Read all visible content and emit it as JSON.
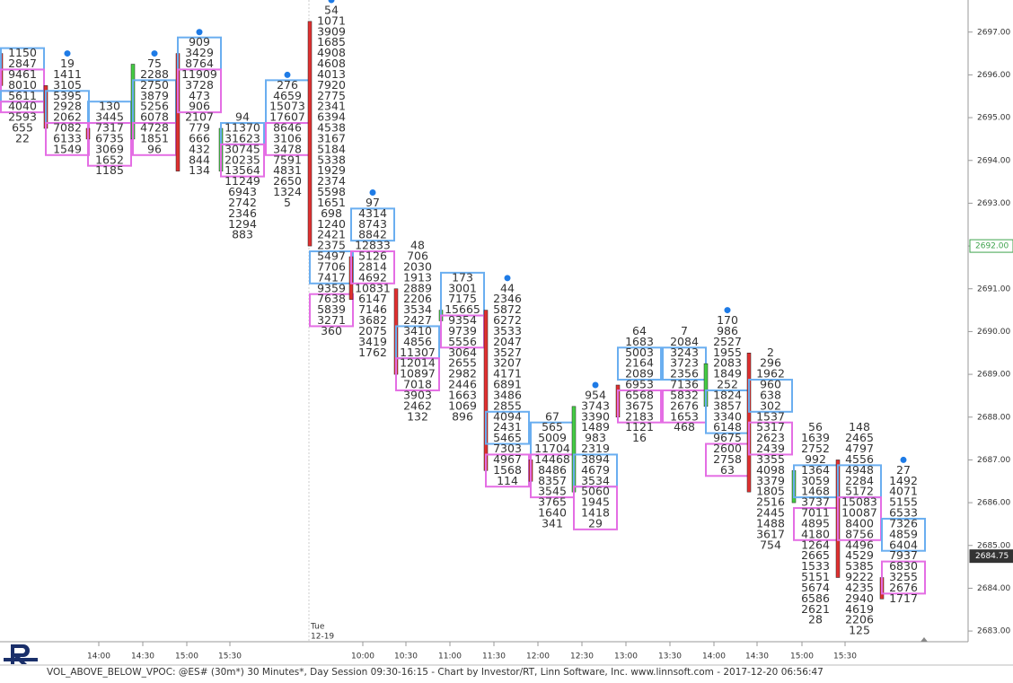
{
  "chart_data": {
    "type": "footprint",
    "ylim": [
      2682.75,
      2697.75
    ],
    "yticks": [
      {
        "value": 2683,
        "label": "2683.00"
      },
      {
        "value": 2684,
        "label": "2684.00"
      },
      {
        "value": 2685,
        "label": "2685.00"
      },
      {
        "value": 2686,
        "label": "2686.00"
      },
      {
        "value": 2687,
        "label": "2687.00"
      },
      {
        "value": 2688,
        "label": "2688.00"
      },
      {
        "value": 2689,
        "label": "2689.00"
      },
      {
        "value": 2690,
        "label": "2690.00"
      },
      {
        "value": 2691,
        "label": "2691.00"
      },
      {
        "value": 2692,
        "label": "2692.00"
      },
      {
        "value": 2693,
        "label": "2693.00"
      },
      {
        "value": 2694,
        "label": "2694.00"
      },
      {
        "value": 2695,
        "label": "2695.00"
      },
      {
        "value": 2696,
        "label": "2696.00"
      },
      {
        "value": 2697,
        "label": "2697.00"
      }
    ],
    "price_markers": [
      {
        "value": 2692,
        "label": "2692.00",
        "color": "#3fa34d"
      },
      {
        "value": 2684.75,
        "label": "2684.75",
        "color": "#333333"
      }
    ],
    "time_labels": [
      "14:00",
      "14:30",
      "15:00",
      "15:30",
      "10:00",
      "10:30",
      "11:00",
      "11:30",
      "12:00",
      "12:30",
      "13:00",
      "13:30",
      "14:00",
      "14:30",
      "15:00",
      "15:30"
    ],
    "session_label": [
      "Tue",
      "12-19"
    ],
    "footer": "VOL_ABOVE_BELOW_VPOC: @ES# (30m*) 30 Minutes*, Day Session 09:30-16:15 - Chart by Investor/RT, Linn Software, Inc. www.linnsoft.com - 2017-12-20 06:56:47",
    "above_color": "#6aaef0",
    "below_color": "#e46ee4",
    "columns": [
      {
        "top": 2696.5,
        "values": [
          1150,
          2847,
          9461,
          8010,
          5611,
          4040,
          2593,
          655,
          22
        ],
        "boxes": [
          {
            "from": 2696.5,
            "to": 2696.25,
            "side": "above"
          },
          {
            "from": 2696,
            "to": 2695.75,
            "side": "below"
          },
          {
            "from": 2695.5,
            "to": 2695.5,
            "side": "above"
          },
          {
            "from": 2695.25,
            "to": 2695.25,
            "side": "below"
          }
        ],
        "body": {
          "high": 2696.5,
          "low": 2695.75,
          "color": "#e03030"
        }
      },
      {
        "top": 2696.25,
        "values": [
          19,
          1411,
          3105,
          5395,
          2928,
          2062,
          7082,
          6133,
          1549
        ],
        "boxes": [
          {
            "from": 2695.5,
            "to": 2695,
            "side": "above"
          },
          {
            "from": 2694.75,
            "to": 2694.25,
            "side": "below"
          }
        ],
        "body": {
          "high": 2695.75,
          "low": 2694.75,
          "color": "#e03030"
        },
        "dot": 2696.5
      },
      {
        "top": 2695.25,
        "values": [
          130,
          3445,
          7317,
          6735,
          3069,
          1652,
          1185
        ],
        "boxes": [
          {
            "from": 2695.25,
            "to": 2695,
            "side": "above"
          },
          {
            "from": 2694.75,
            "to": 2694,
            "side": "below"
          }
        ],
        "body": {
          "high": 2694.75,
          "low": 2694.5,
          "color": "#e03030"
        }
      },
      {
        "top": 2696.25,
        "values": [
          75,
          2288,
          2750,
          3879,
          5256,
          6078,
          4728,
          1851,
          96
        ],
        "boxes": [
          {
            "from": 2695.75,
            "to": 2695,
            "side": "above"
          },
          {
            "from": 2694.75,
            "to": 2694.25,
            "side": "below"
          }
        ],
        "body": {
          "high": 2696.25,
          "low": 2694.5,
          "color": "#44cc44"
        },
        "dot": 2696.5
      },
      {
        "top": 2696.75,
        "values": [
          909,
          3429,
          8764,
          11909,
          3728,
          473,
          906,
          2107,
          779,
          666,
          432,
          844,
          134
        ],
        "boxes": [
          {
            "from": 2696.75,
            "to": 2696.25,
            "side": "above"
          },
          {
            "from": 2696,
            "to": 2695.25,
            "side": "below"
          }
        ],
        "body": {
          "high": 2696.5,
          "low": 2693.75,
          "color": "#e03030"
        },
        "dot": 2697
      },
      {
        "top": 2695,
        "values": [
          94,
          11370,
          31623,
          30745,
          20235,
          13564,
          11249,
          6943,
          2742,
          2346,
          1294,
          883
        ],
        "boxes": [
          {
            "from": 2694.75,
            "to": 2694.5,
            "side": "above"
          },
          {
            "from": 2694.25,
            "to": 2693.75,
            "side": "below"
          }
        ],
        "body": {
          "high": 2694.75,
          "low": 2693.75,
          "color": "#44cc44"
        }
      },
      {
        "top": 2695.75,
        "values": [
          276,
          4659,
          15073,
          17607,
          8646,
          3106,
          3478,
          7591,
          4831,
          2650,
          1324,
          5
        ],
        "boxes": [
          {
            "from": 2695.75,
            "to": 2695,
            "side": "above"
          },
          {
            "from": 2694.75,
            "to": 2694.25,
            "side": "below"
          }
        ],
        "dot": 2696
      },
      {
        "top": 2697.5,
        "values": [
          54,
          1071,
          3909,
          1685,
          4908,
          4608,
          4013,
          7920,
          2775,
          2341,
          6394,
          4538,
          3167,
          5184,
          5338,
          1929,
          2374,
          5598,
          1651,
          698,
          1240,
          2421,
          2375,
          5497,
          7706,
          7417,
          9359,
          7638,
          5839,
          3271,
          360
        ],
        "boxes": [
          {
            "from": 2691.75,
            "to": 2691.25,
            "side": "above"
          },
          {
            "from": 2690.75,
            "to": 2690.25,
            "side": "below"
          }
        ],
        "body": {
          "high": 2697.25,
          "low": 2692,
          "color": "#e03030"
        },
        "dot": 2697.75
      },
      {
        "top": 2693,
        "values": [
          97,
          4314,
          8743,
          8842,
          12833,
          5126,
          2814,
          4692,
          10831,
          6147,
          7146,
          3682,
          2075,
          3419,
          1762
        ],
        "boxes": [
          {
            "from": 2692.75,
            "to": 2692.25,
            "side": "above"
          },
          {
            "from": 2691.75,
            "to": 2691.25,
            "side": "below"
          }
        ],
        "body": {
          "high": 2691.75,
          "low": 2690.75,
          "color": "#e03030"
        },
        "dot": 2693.25
      },
      {
        "top": 2692,
        "values": [
          48,
          706,
          2030,
          1913,
          2889,
          2206,
          3534,
          2427,
          3410,
          4856,
          11307,
          12014,
          10897,
          7018,
          3903,
          2462,
          132
        ],
        "boxes": [
          {
            "from": 2690,
            "to": 2689.5,
            "side": "above"
          },
          {
            "from": 2689.25,
            "to": 2688.75,
            "side": "below"
          }
        ],
        "body": {
          "high": 2691,
          "low": 2689,
          "color": "#e03030"
        }
      },
      {
        "top": 2691.25,
        "values": [
          173,
          3001,
          7175,
          15665,
          9354,
          9739,
          5556,
          3064,
          2655,
          2982,
          2446,
          1663,
          1069,
          896
        ],
        "boxes": [
          {
            "from": 2691.25,
            "to": 2690.5,
            "side": "above"
          },
          {
            "from": 2690.25,
            "to": 2689.75,
            "side": "below"
          }
        ],
        "body": {
          "high": 2690.5,
          "low": 2690.25,
          "color": "#44cc44"
        }
      },
      {
        "top": 2691,
        "values": [
          44,
          2346,
          5872,
          6272,
          3533,
          2047,
          3527,
          3207,
          4171,
          6891,
          3486,
          2855,
          4094,
          2431,
          5465,
          7303,
          4967,
          1568,
          114
        ],
        "boxes": [
          {
            "from": 2688,
            "to": 2687.5,
            "side": "above"
          },
          {
            "from": 2687,
            "to": 2686.5,
            "side": "below"
          }
        ],
        "body": {
          "high": 2690.5,
          "low": 2686.75,
          "color": "#e03030"
        },
        "dot": 2691.25
      },
      {
        "top": 2688,
        "values": [
          67,
          565,
          5009,
          11704,
          14468,
          8486,
          8357,
          3545,
          3765,
          1640,
          341
        ],
        "boxes": [
          {
            "from": 2687.75,
            "to": 2687.25,
            "side": "above"
          },
          {
            "from": 2687,
            "to": 2686.25,
            "side": "below"
          }
        ],
        "body": {
          "high": 2687,
          "low": 2686.5,
          "color": "#e03030"
        }
      },
      {
        "top": 2688.5,
        "values": [
          954,
          3743,
          3390,
          1489,
          983,
          2319,
          3894,
          4679,
          3534,
          5060,
          1945,
          1418,
          29
        ],
        "boxes": [
          {
            "from": 2687,
            "to": 2686.5,
            "side": "above"
          },
          {
            "from": 2686.25,
            "to": 2685.5,
            "side": "below"
          }
        ],
        "body": {
          "high": 2688.25,
          "low": 2686.25,
          "color": "#44cc44"
        },
        "dot": 2688.75
      },
      {
        "top": 2690,
        "values": [
          64,
          1683,
          5003,
          2164,
          2089,
          6953,
          6568,
          3675,
          2183,
          1121,
          16
        ],
        "boxes": [
          {
            "from": 2689.5,
            "to": 2689,
            "side": "above"
          },
          {
            "from": 2688.5,
            "to": 2688,
            "side": "below"
          }
        ],
        "body": {
          "high": 2688.75,
          "low": 2688,
          "color": "#e03030"
        }
      },
      {
        "top": 2690,
        "values": [
          7,
          2084,
          3243,
          3723,
          2356,
          7136,
          5832,
          2676,
          1653,
          468
        ],
        "boxes": [
          {
            "from": 2689.5,
            "to": 2689,
            "side": "above"
          },
          {
            "from": 2688.5,
            "to": 2688,
            "side": "below"
          }
        ]
      },
      {
        "top": 2690.25,
        "values": [
          170,
          986,
          2527,
          1955,
          2083,
          1849,
          252,
          1824,
          3857,
          3340,
          6148,
          9675,
          2600,
          2758,
          63
        ],
        "boxes": [
          {
            "from": 2688.5,
            "to": 2687.75,
            "side": "above"
          },
          {
            "from": 2687.25,
            "to": 2686.75,
            "side": "below"
          }
        ],
        "body": {
          "high": 2689.25,
          "low": 2688.25,
          "color": "#44cc44"
        },
        "dot": 2690.5
      },
      {
        "top": 2689.5,
        "values": [
          2,
          296,
          1962,
          960,
          638,
          302,
          1537,
          5317,
          2623,
          2439,
          3355,
          4098,
          3379,
          1805,
          2516,
          2445,
          1488,
          3617,
          754
        ],
        "boxes": [
          {
            "from": 2688.75,
            "to": 2688.25,
            "side": "above"
          },
          {
            "from": 2687.75,
            "to": 2687.25,
            "side": "below"
          }
        ],
        "body": {
          "high": 2689.5,
          "low": 2686.25,
          "color": "#e03030"
        }
      },
      {
        "top": 2687.75,
        "values": [
          56,
          1639,
          2752,
          992,
          1364,
          3059,
          1468,
          3737,
          7011,
          4895,
          4180,
          1264,
          2665,
          1533,
          5151,
          5674,
          6586,
          2621,
          28
        ],
        "boxes": [
          {
            "from": 2686.75,
            "to": 2686.25,
            "side": "above"
          },
          {
            "from": 2685.75,
            "to": 2685.25,
            "side": "below"
          }
        ],
        "body": {
          "high": 2686.75,
          "low": 2686,
          "color": "#44cc44"
        }
      },
      {
        "top": 2687.75,
        "values": [
          148,
          2465,
          4797,
          4556,
          4948,
          2284,
          5172,
          15083,
          10087,
          8400,
          8756,
          4496,
          4529,
          5385,
          9222,
          4235,
          2940,
          4619,
          2206,
          125
        ],
        "boxes": [
          {
            "from": 2686.75,
            "to": 2686.25,
            "side": "above"
          },
          {
            "from": 2686,
            "to": 2685.25,
            "side": "below"
          }
        ],
        "body": {
          "high": 2687,
          "low": 2684.25,
          "color": "#e03030"
        }
      },
      {
        "top": 2686.75,
        "values": [
          27,
          1492,
          4071,
          5155,
          6533,
          7326,
          4859,
          6404,
          7937,
          6830,
          3255,
          2676,
          1717
        ],
        "boxes": [
          {
            "from": 2685.5,
            "to": 2685,
            "side": "above"
          },
          {
            "from": 2684.5,
            "to": 2684,
            "side": "below"
          }
        ],
        "body": {
          "high": 2684.25,
          "low": 2683.75,
          "color": "#e03030"
        },
        "dot": 2687
      }
    ]
  }
}
